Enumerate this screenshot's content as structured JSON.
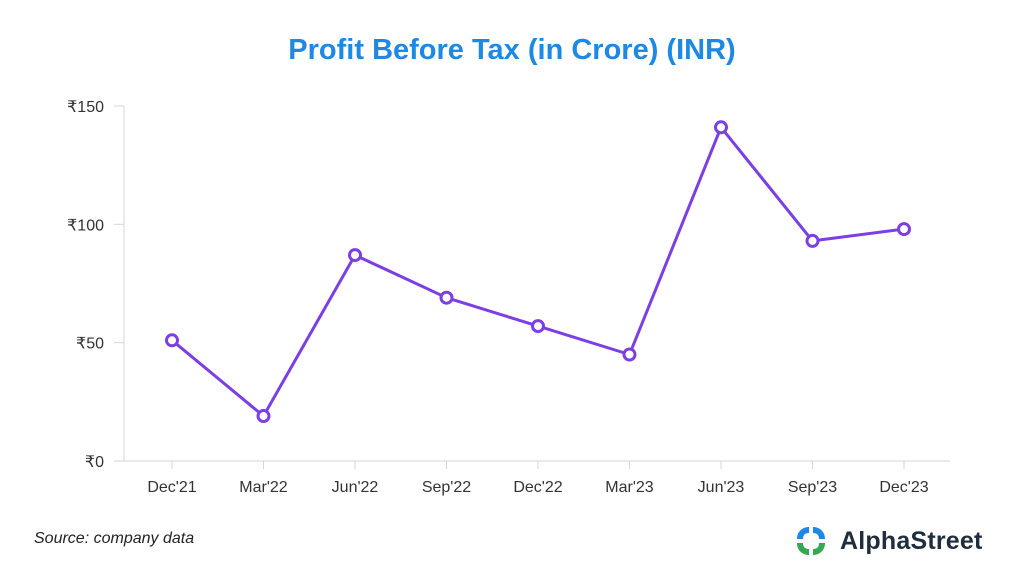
{
  "chart_data": {
    "type": "line",
    "title": "Profit Before Tax (in Crore) (INR)",
    "categories": [
      "Dec'21",
      "Mar'22",
      "Jun'22",
      "Sep'22",
      "Dec'22",
      "Mar'23",
      "Jun'23",
      "Sep'23",
      "Dec'23"
    ],
    "series": [
      {
        "values": [
          51,
          19,
          87,
          69,
          57,
          45,
          141,
          93,
          98
        ]
      }
    ],
    "ylim": [
      0,
      150
    ],
    "yticks": [
      0,
      50,
      100,
      150
    ],
    "ytick_labels": [
      "₹0",
      "₹50",
      "₹100",
      "₹150"
    ],
    "xlabel": "",
    "ylabel": "",
    "grid": false,
    "line_color": "#7b3fe4",
    "title_color": "#1e88e5"
  },
  "footer": {
    "source": "Source: company data",
    "brand": "AlphaStreet",
    "brand_colors": [
      "#1e88e5",
      "#34a853"
    ]
  }
}
